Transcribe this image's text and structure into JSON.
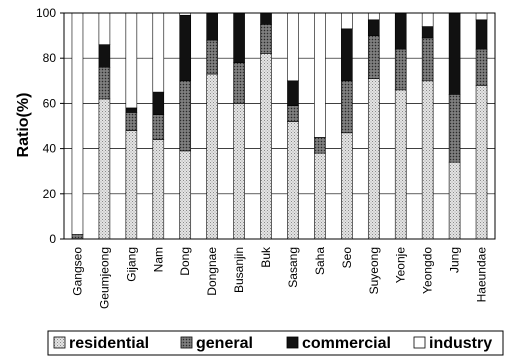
{
  "chart_data": {
    "type": "bar",
    "stacked": true,
    "ylabel": "Ratio(%)",
    "ylim": [
      0,
      100
    ],
    "yticks": [
      0,
      20,
      40,
      60,
      80,
      100
    ],
    "grid": "horizontal",
    "legend_position": "bottom",
    "categories": [
      "Gangseo",
      "Geumjeong",
      "Gijang",
      "Nam",
      "Dong",
      "Dongnae",
      "Busanjin",
      "Buk",
      "Sasang",
      "Saha",
      "Seo",
      "Suyeong",
      "Yeonje",
      "Yeongdo",
      "Jung",
      "Haeundae"
    ],
    "series": [
      {
        "name": "residential",
        "color": "#d6d6d6",
        "values": [
          0,
          62,
          48,
          44,
          39,
          73,
          60,
          82,
          52,
          38,
          47,
          71,
          66,
          70,
          34,
          68
        ]
      },
      {
        "name": "general",
        "color": "#808080",
        "values": [
          2,
          14,
          8,
          11,
          31,
          15,
          18,
          13,
          7,
          7,
          23,
          19,
          18,
          19,
          30,
          16
        ]
      },
      {
        "name": "commercial",
        "color": "#111111",
        "values": [
          0,
          10,
          2,
          10,
          29,
          12,
          22,
          5,
          11,
          0,
          23,
          7,
          16,
          5,
          36,
          13
        ]
      },
      {
        "name": "industry",
        "color": "#ffffff",
        "values": [
          98,
          14,
          42,
          35,
          1,
          0,
          0,
          0,
          30,
          55,
          7,
          3,
          0,
          6,
          0,
          3
        ]
      }
    ]
  }
}
